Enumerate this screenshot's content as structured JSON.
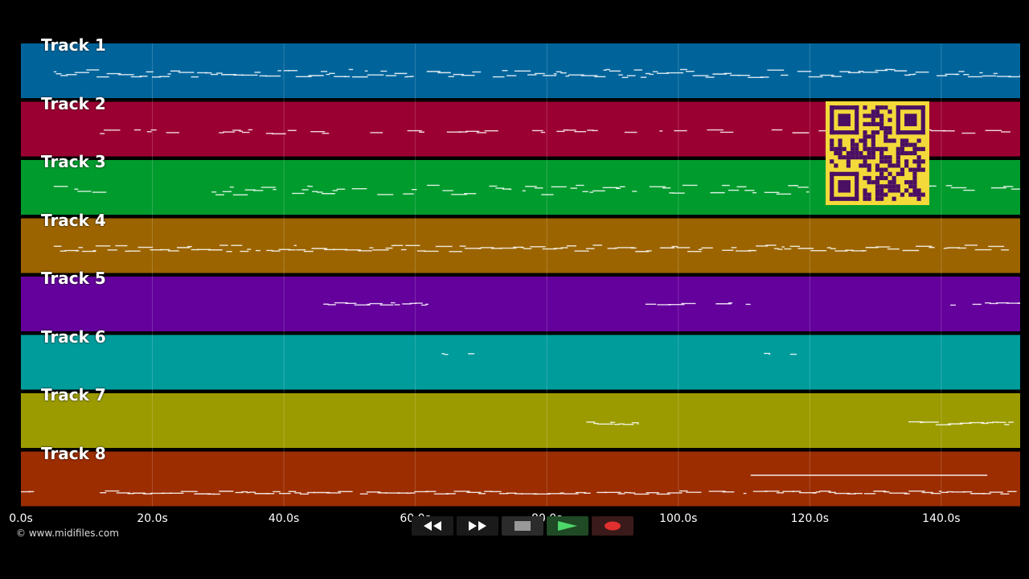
{
  "tracks": [
    {
      "label": "Track 1",
      "color": "#00649b"
    },
    {
      "label": "Track 2",
      "color": "#9b0032"
    },
    {
      "label": "Track 3",
      "color": "#009b2d"
    },
    {
      "label": "Track 4",
      "color": "#9b6400"
    },
    {
      "label": "Track 5",
      "color": "#64009b"
    },
    {
      "label": "Track 6",
      "color": "#009b9b"
    },
    {
      "label": "Track 7",
      "color": "#9b9b00"
    },
    {
      "label": "Track 8",
      "color": "#9b2d00"
    }
  ],
  "timeline": {
    "ticks": [
      "0.0s",
      "20.0s",
      "40.0s",
      "60.0s",
      "80.0s",
      "100.0s",
      "120.0s",
      "140.0s"
    ],
    "tick_values": [
      0,
      20,
      40,
      60,
      80,
      100,
      120,
      140
    ],
    "max_seconds": 152
  },
  "copyright": "© www.midifiles.com",
  "transport": {
    "rewind_icon": "rewind-icon",
    "fast_forward_icon": "fast-forward-icon",
    "stop_icon": "stop-icon",
    "play_icon": "play-icon",
    "record_icon": "record-icon",
    "play_color": "#2fa84a",
    "record_color": "#e03030"
  },
  "qr_code": {
    "color": "#f3d93a",
    "ink": "#4a0f63"
  }
}
